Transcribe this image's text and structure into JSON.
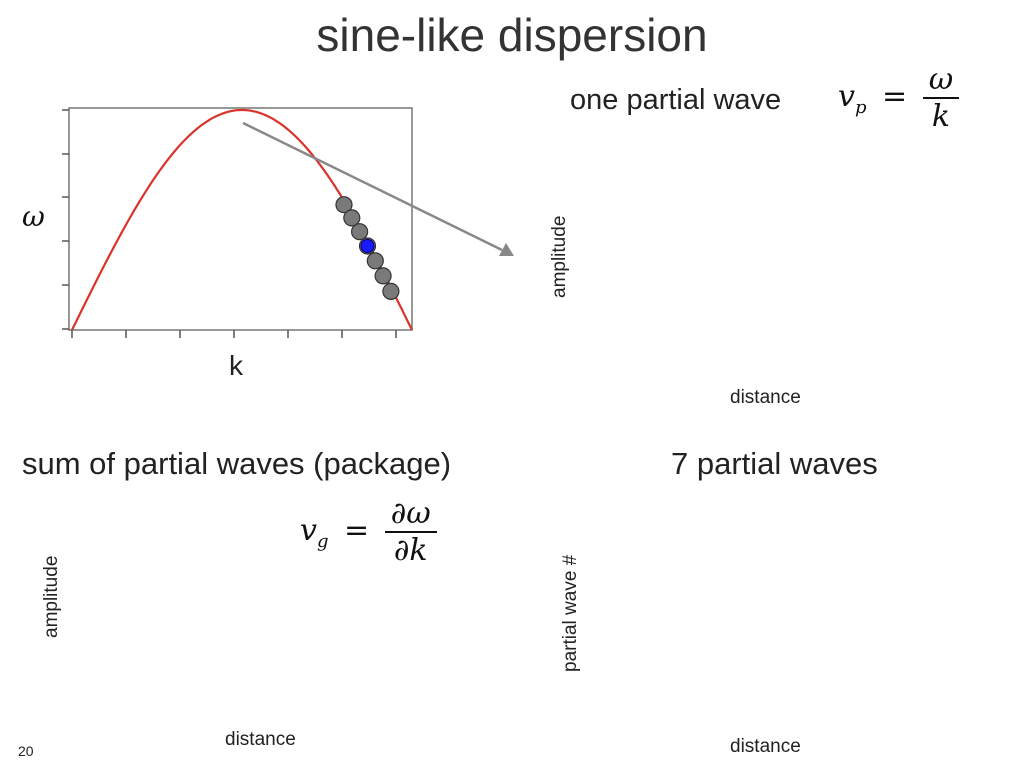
{
  "slide": {
    "title": "sine-like dispersion",
    "page_number": "20"
  },
  "top_right": {
    "label": "one partial wave",
    "formula": {
      "lhs": "v",
      "lhs_sub": "p",
      "eq": "=",
      "num": "ω",
      "den": "k"
    },
    "ylabel": "amplitude",
    "xlabel": "distance"
  },
  "dispersion_plot": {
    "ylabel": "ω",
    "xlabel": "k",
    "curve_color": "#d9332b",
    "arrow_color": "#888888",
    "point_color": "#7a7a7a",
    "highlight_color": "#1a1aff"
  },
  "bottom_left": {
    "label": "sum of partial waves (package)",
    "formula": {
      "lhs": "v",
      "lhs_sub": "g",
      "eq": "=",
      "num": "∂ω",
      "den": "∂k"
    },
    "ylabel": "amplitude",
    "xlabel": "distance"
  },
  "bottom_right": {
    "label": "7 partial waves",
    "ylabel": "partial wave #",
    "xlabel": "distance"
  }
}
